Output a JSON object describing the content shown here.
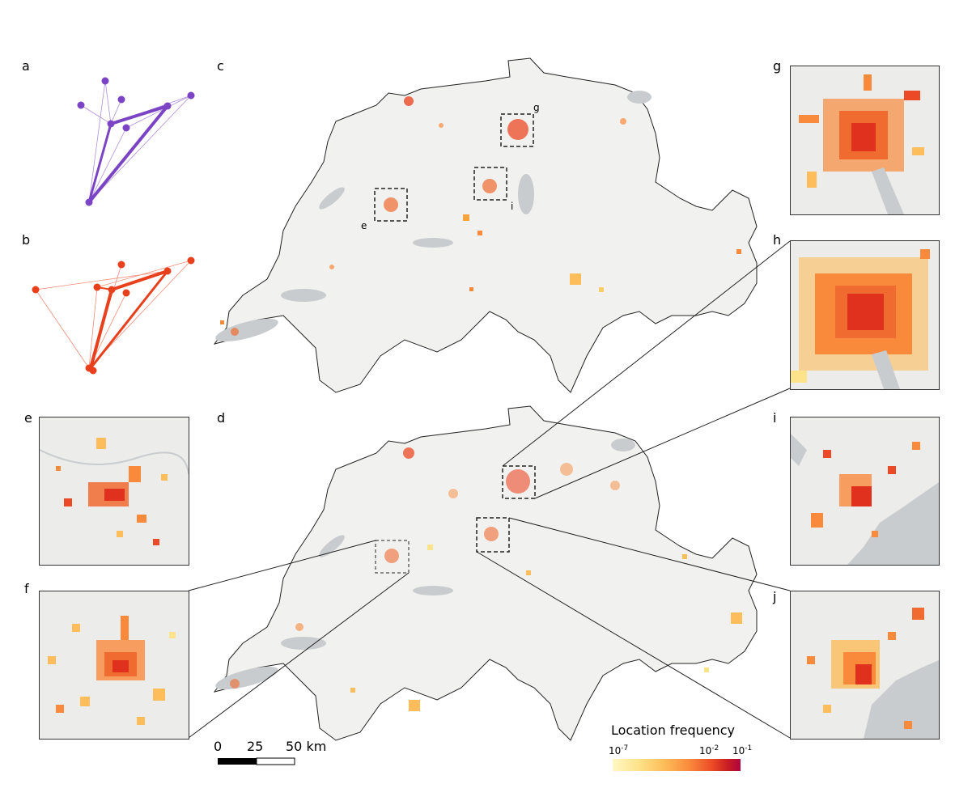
{
  "panels": {
    "a": "a",
    "b": "b",
    "c": "c",
    "d": "d",
    "e": "e",
    "f": "f",
    "g": "g",
    "h": "h",
    "i": "i",
    "j": "j"
  },
  "map_markers": {
    "c_e": "e",
    "c_g": "g",
    "c_i": "i"
  },
  "scale_bar": {
    "tick_0": "0",
    "tick_25": "25",
    "tick_50": "50 km"
  },
  "legend": {
    "title": "Location frequency",
    "min_label": "10",
    "min_exp": "-7",
    "mid_label": "10",
    "mid_exp": "-2",
    "max_label": "10",
    "max_exp": "-1"
  },
  "colors": {
    "graph_a": "#7b44c4",
    "graph_b": "#e8401c",
    "heat_low": "#fde38a",
    "heat_mid": "#f98a3c",
    "heat_high": "#c81d23",
    "lake": "#c9ccce",
    "land": "#f1f1ef"
  }
}
